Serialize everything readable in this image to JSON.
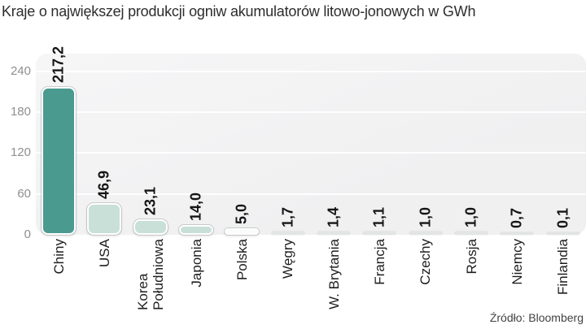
{
  "header": {
    "title": "Kraje o największej produkcji ogniw akumulatorów litowo-jonowych w GWh"
  },
  "footer": {
    "source": "Źródło: Bloomberg"
  },
  "chart_data": {
    "type": "bar",
    "title": "Kraje o największej produkcji ogniw akumulatorów litowo-jonowych w GWh",
    "unit": "GWh",
    "xlabel": "",
    "ylabel": "",
    "ylim": [
      0,
      240
    ],
    "yticks": [
      0,
      60,
      120,
      180,
      240
    ],
    "ytick_labels": [
      "0",
      "60",
      "120",
      "180",
      "240"
    ],
    "grid": true,
    "legend_position": "none",
    "source": "Źródło: Bloomberg",
    "categories": [
      "Chiny",
      "USA",
      "Korea Południowa",
      "Japonia",
      "Polska",
      "Węgry",
      "W. Brytania",
      "Francja",
      "Czechy",
      "Rosja",
      "Niemcy",
      "Finlandia"
    ],
    "categories_display": [
      "Chiny",
      "USA",
      "Korea\nPołudniowa",
      "Japonia",
      "Polska",
      "Węgry",
      "W. Brytania",
      "Francja",
      "Czechy",
      "Rosja",
      "Niemcy",
      "Finlandia"
    ],
    "values": [
      217.2,
      46.9,
      23.1,
      14.0,
      5.0,
      1.7,
      1.4,
      1.1,
      1.0,
      1.0,
      0.7,
      0.1
    ],
    "value_labels": [
      "217,2",
      "46,9",
      "23,1",
      "14,0",
      "5,0",
      "1,7",
      "1,4",
      "1,1",
      "1,0",
      "1,0",
      "0,7",
      "0,1"
    ],
    "bar_styles": [
      "primary",
      "secondary",
      "secondary",
      "secondary",
      "outline",
      "flat",
      "flat",
      "flat",
      "flat",
      "flat",
      "flat",
      "flat"
    ],
    "colors": {
      "primary": "#4a9a8f",
      "secondary": "#c9e0d9",
      "outline": "#fafcfb",
      "flat": "#e2e5e4",
      "bar_border": "#ffffff",
      "panel_background": "#f2f2f3",
      "gridline": "#ffffff",
      "axis_text": "#8f8f8f",
      "label_text": "#1e1e1e",
      "title_text": "#2d2d2d"
    }
  }
}
